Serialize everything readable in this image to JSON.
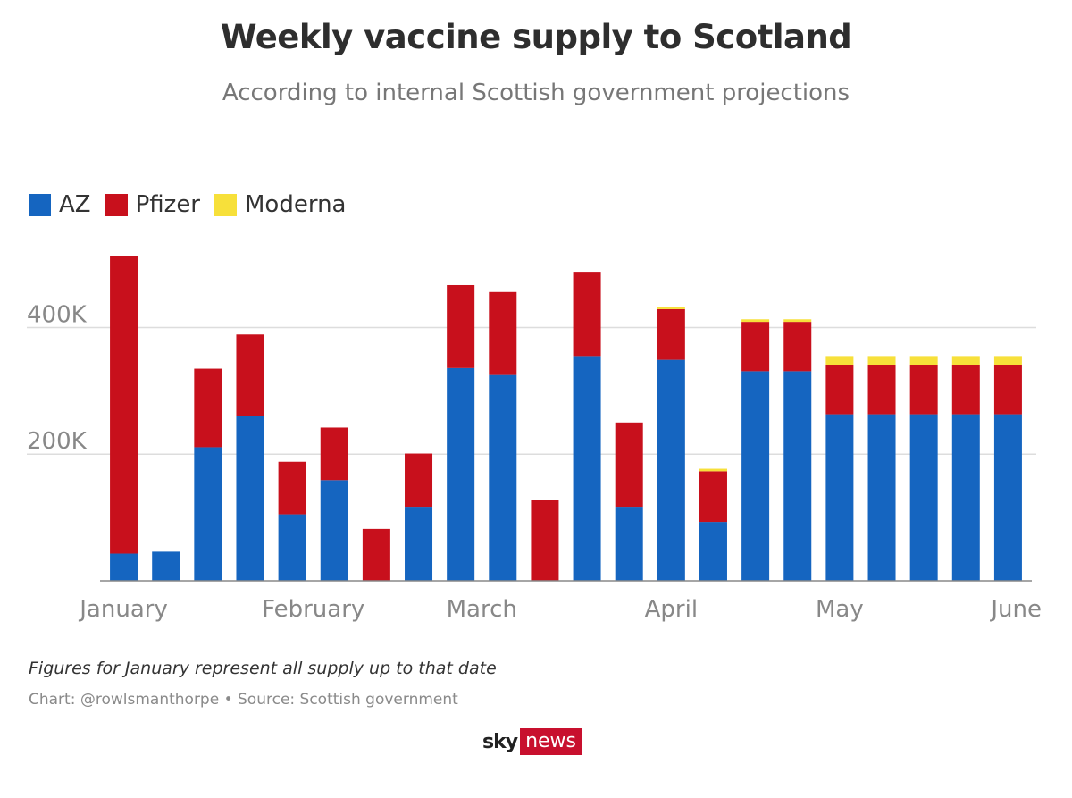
{
  "chart_data": {
    "type": "bar",
    "stacked": true,
    "title": "Weekly vaccine supply to Scotland",
    "subtitle": "According to internal Scottish government projections",
    "ylim": [
      0,
      520000
    ],
    "yticks": [
      {
        "value": 200000,
        "label": "200K"
      },
      {
        "value": 400000,
        "label": "400K"
      }
    ],
    "xticks": [
      {
        "index": 0,
        "label": "January"
      },
      {
        "index": 4.5,
        "label": "February"
      },
      {
        "index": 8.5,
        "label": "March"
      },
      {
        "index": 13,
        "label": "April"
      },
      {
        "index": 17,
        "label": "May"
      },
      {
        "index": 21,
        "label": "June"
      }
    ],
    "series": [
      {
        "name": "AZ",
        "color": "#1565c0",
        "values": [
          43000,
          46000,
          211000,
          261000,
          105000,
          159000,
          0,
          117000,
          336000,
          325000,
          0,
          355000,
          117000,
          349000,
          93000,
          331000,
          331000,
          263000,
          263000,
          263000,
          263000,
          263000
        ]
      },
      {
        "name": "Pfizer",
        "color": "#c8101c",
        "values": [
          470000,
          0,
          124000,
          128000,
          83000,
          83000,
          82000,
          84000,
          131000,
          131000,
          128000,
          133000,
          133000,
          80000,
          80000,
          78000,
          78000,
          78000,
          78000,
          78000,
          78000,
          78000
        ]
      },
      {
        "name": "Moderna",
        "color": "#f7e03a",
        "values": [
          0,
          0,
          0,
          0,
          0,
          0,
          0,
          0,
          0,
          0,
          0,
          0,
          0,
          4000,
          4000,
          4000,
          4000,
          14000,
          14000,
          14000,
          14000,
          14000
        ]
      }
    ]
  },
  "footer": {
    "note": "Figures for January represent all supply up to that date",
    "source": "Chart: @rowlsmanthorpe • Source: Scottish government"
  },
  "logo": {
    "sky": "sky",
    "news": "news"
  }
}
